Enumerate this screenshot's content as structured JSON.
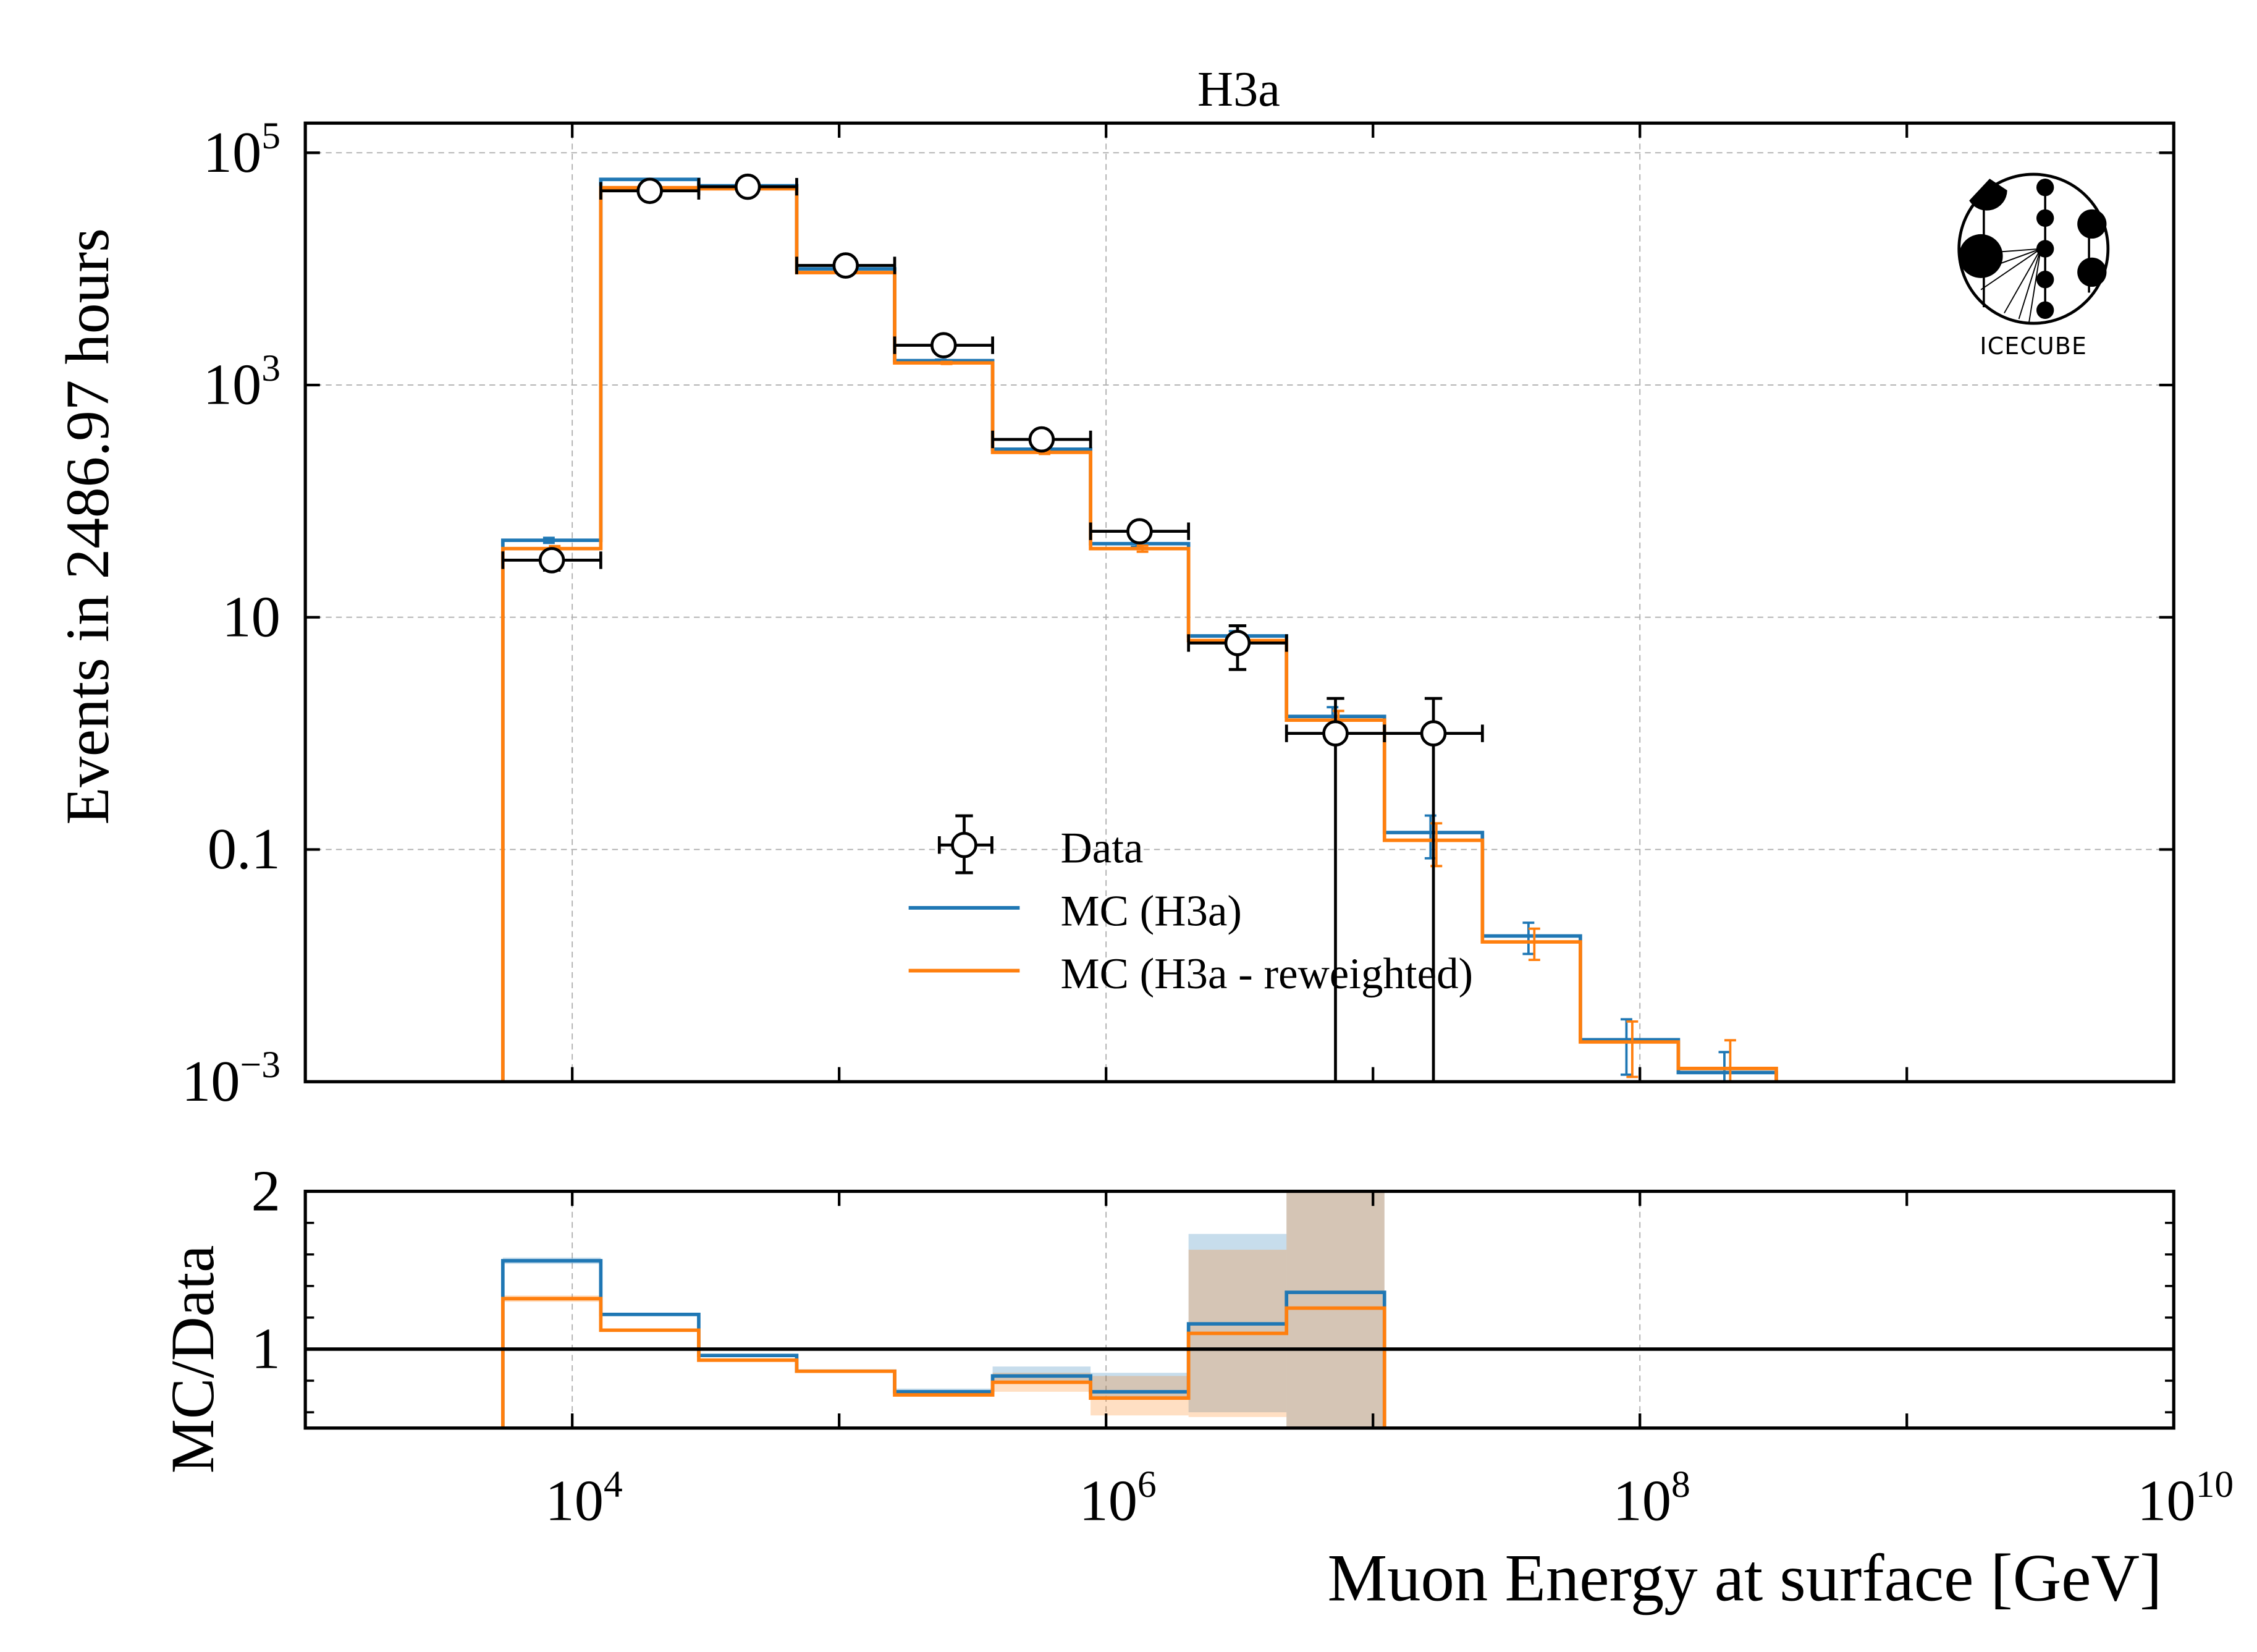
{
  "chart_data": {
    "type": "bar",
    "title": "H3a",
    "main_panel": {
      "ylabel": "Events in 2486.97 hours",
      "yscale": "log",
      "ylim": [
        0.001,
        180000
      ],
      "yticks": [
        {
          "value": 100000,
          "base": "10",
          "exp": "5"
        },
        {
          "value": 1000,
          "base": "10",
          "exp": "3"
        },
        {
          "value": 10,
          "base": "10",
          "exp": ""
        },
        {
          "value": 0.1,
          "base": "0.1",
          "exp": ""
        },
        {
          "value": 0.001,
          "base": "10",
          "exp": "−3"
        }
      ],
      "grid": true
    },
    "ratio_panel": {
      "ylabel": "MC/Data",
      "ylim": [
        0.5,
        2.0
      ],
      "yticks": [
        {
          "value": 1,
          "label": "1"
        },
        {
          "value": 2,
          "label": "2"
        }
      ],
      "minor_yticks": [
        0.6,
        0.8,
        1.2,
        1.4,
        1.6,
        1.8
      ],
      "reference_line": 1
    },
    "xlabel": "Muon Energy at surface [GeV]",
    "xscale": "log",
    "xlim": [
      1000,
      10000000000
    ],
    "xticks": [
      {
        "value": 10000,
        "base": "10",
        "exp": "4"
      },
      {
        "value": 1000000,
        "base": "10",
        "exp": "6"
      },
      {
        "value": 100000000,
        "base": "10",
        "exp": "8"
      },
      {
        "value": 10000000000,
        "base": "10",
        "exp": "10"
      }
    ],
    "bin_edges_log10": [
      3.74,
      4.107,
      4.474,
      4.841,
      5.208,
      5.575,
      5.942,
      6.309,
      6.676,
      7.043,
      7.41,
      7.777,
      8.144,
      8.511
    ],
    "series": [
      {
        "name": "MC (H3a)",
        "color": "#1f77b4",
        "values": [
          46,
          59000,
          52000,
          10000,
          1620,
          280,
          43,
          6.9,
          1.4,
          0.14,
          0.018,
          0.0023,
          0.0012
        ],
        "rel_err": [
          0.05,
          0.01,
          0.01,
          0.01,
          0.02,
          0.03,
          0.06,
          0.1,
          0.2,
          0.4,
          0.3,
          0.5,
          0.5
        ],
        "ratio": [
          1.56,
          1.22,
          0.96,
          0.86,
          0.73,
          0.83,
          0.73,
          1.16,
          1.36
        ],
        "ratio_band": [
          [
            1.54,
            1.58
          ],
          [
            1.21,
            1.23
          ],
          [
            0.95,
            0.97
          ],
          [
            0.85,
            0.87
          ],
          [
            0.72,
            0.75
          ],
          [
            0.78,
            0.89
          ],
          [
            0.68,
            0.85
          ],
          [
            0.6,
            1.73
          ],
          [
            0.5,
            2.0
          ]
        ]
      },
      {
        "name": "MC (H3a - reweighted)",
        "color": "#ff7f0e",
        "values": [
          39,
          50000,
          49000,
          9300,
          1550,
          263,
          39,
          6.3,
          1.3,
          0.12,
          0.016,
          0.0022,
          0.0013
        ],
        "rel_err": [
          0.05,
          0.01,
          0.01,
          0.01,
          0.02,
          0.03,
          0.06,
          0.1,
          0.2,
          0.4,
          0.3,
          0.5,
          0.75
        ],
        "ratio": [
          1.32,
          1.12,
          0.93,
          0.86,
          0.71,
          0.79,
          0.69,
          1.1,
          1.26
        ],
        "ratio_band": [
          [
            1.3,
            1.34
          ],
          [
            1.11,
            1.13
          ],
          [
            0.92,
            0.94
          ],
          [
            0.85,
            0.87
          ],
          [
            0.7,
            0.73
          ],
          [
            0.73,
            0.85
          ],
          [
            0.58,
            0.83
          ],
          [
            0.57,
            1.63
          ],
          [
            0.5,
            2.0
          ]
        ]
      }
    ],
    "data_points": {
      "name": "Data",
      "values": [
        31,
        47000,
        51000,
        10700,
        2200,
        340,
        55,
        6,
        1,
        1
      ]
    },
    "legend": {
      "placement": "lower-center",
      "entries": [
        "Data",
        "MC (H3a)",
        "MC (H3a - reweighted)"
      ]
    },
    "logo_text": "IceCube"
  }
}
